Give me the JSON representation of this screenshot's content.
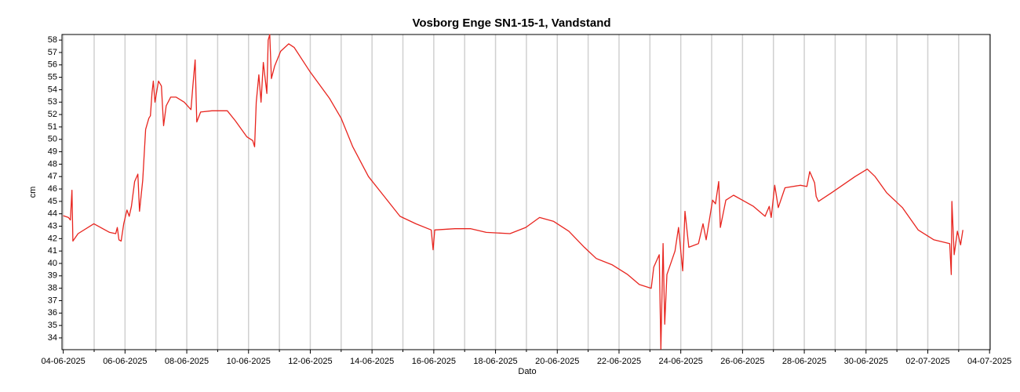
{
  "chart_data": {
    "type": "line",
    "title": "Vosborg Enge SN1-15-1, Vandstand",
    "xlabel": "Dato",
    "ylabel": "cm",
    "x": [
      "2025-06-04T00:00",
      "2025-06-04T04:00",
      "2025-06-04T05:30",
      "2025-06-04T06:45",
      "2025-06-04T07:30",
      "2025-06-04T11:30",
      "2025-06-04T23:45",
      "2025-06-05T12:00",
      "2025-06-05T16:45",
      "2025-06-05T18:00",
      "2025-06-05T19:15",
      "2025-06-05T21:00",
      "2025-06-05T23:00",
      "2025-06-06T01:30",
      "2025-06-06T03:15",
      "2025-06-06T05:00",
      "2025-06-06T07:30",
      "2025-06-06T10:00",
      "2025-06-06T11:15",
      "2025-06-06T13:45",
      "2025-06-06T16:00",
      "2025-06-06T18:30",
      "2025-06-06T19:45",
      "2025-06-06T21:00",
      "2025-06-06T22:00",
      "2025-06-06T23:15",
      "2025-06-07T02:00",
      "2025-06-07T04:15",
      "2025-06-07T06:00",
      "2025-06-07T08:00",
      "2025-06-07T11:30",
      "2025-06-07T15:45",
      "2025-06-07T22:00",
      "2025-06-08T03:15",
      "2025-06-08T04:45",
      "2025-06-08T06:30",
      "2025-06-08T07:45",
      "2025-06-08T10:45",
      "2025-06-08T19:30",
      "2025-06-09T07:30",
      "2025-06-09T13:45",
      "2025-06-09T22:45",
      "2025-06-10T03:15",
      "2025-06-10T04:45",
      "2025-06-10T06:00",
      "2025-06-10T08:00",
      "2025-06-10T09:45",
      "2025-06-10T11:30",
      "2025-06-10T14:15",
      "2025-06-10T15:15",
      "2025-06-10T16:30",
      "2025-06-10T17:45",
      "2025-06-10T20:15",
      "2025-06-11T01:00",
      "2025-06-11T07:15",
      "2025-06-11T11:30",
      "2025-06-11T23:30",
      "2025-06-12T15:00",
      "2025-06-13T00:00",
      "2025-06-13T09:00",
      "2025-06-13T21:15",
      "2025-06-14T09:30",
      "2025-06-14T21:45",
      "2025-06-15T10:00",
      "2025-06-15T22:00",
      "2025-06-15T23:30",
      "2025-06-16T00:45",
      "2025-06-16T16:30",
      "2025-06-17T04:45",
      "2025-06-17T16:45",
      "2025-06-18T11:15",
      "2025-06-18T23:30",
      "2025-06-19T10:15",
      "2025-06-19T21:00",
      "2025-06-20T09:00",
      "2025-06-20T21:00",
      "2025-06-21T06:15",
      "2025-06-21T18:30",
      "2025-06-22T06:45",
      "2025-06-22T15:45",
      "2025-06-23T01:00",
      "2025-06-23T03:00",
      "2025-06-23T07:15",
      "2025-06-23T08:30",
      "2025-06-23T10:15",
      "2025-06-23T11:30",
      "2025-06-23T13:15",
      "2025-06-23T19:30",
      "2025-06-23T22:15",
      "2025-06-24T01:30",
      "2025-06-24T03:15",
      "2025-06-24T06:15",
      "2025-06-24T13:45",
      "2025-06-24T17:15",
      "2025-06-24T19:45",
      "2025-06-25T00:45",
      "2025-06-25T03:00",
      "2025-06-25T05:30",
      "2025-06-25T06:45",
      "2025-06-25T11:00",
      "2025-06-25T17:00",
      "2025-06-26T08:30",
      "2025-06-26T17:30",
      "2025-06-26T20:45",
      "2025-06-26T22:15",
      "2025-06-27T01:00",
      "2025-06-27T03:45",
      "2025-06-27T09:00",
      "2025-06-27T21:00",
      "2025-06-28T02:00",
      "2025-06-28T04:15",
      "2025-06-28T08:00",
      "2025-06-28T09:15",
      "2025-06-28T11:00",
      "2025-06-28T21:15",
      "2025-06-29T15:30",
      "2025-06-30T01:00",
      "2025-06-30T07:00",
      "2025-06-30T16:00",
      "2025-07-01T04:15",
      "2025-07-01T16:30",
      "2025-07-02T04:45",
      "2025-07-02T17:00",
      "2025-07-02T18:15",
      "2025-07-02T18:45",
      "2025-07-02T20:30",
      "2025-07-02T23:00",
      "2025-07-03T01:30",
      "2025-07-03T03:15"
    ],
    "series": [
      {
        "name": "Vandstand",
        "color": "#e8251f",
        "values": [
          43.85,
          43.7,
          43.5,
          45.9,
          41.8,
          42.4,
          43.2,
          42.5,
          42.4,
          42.9,
          41.9,
          41.8,
          43.2,
          44.3,
          43.8,
          44.6,
          46.6,
          47.2,
          44.2,
          46.7,
          50.8,
          51.7,
          51.9,
          53.8,
          54.7,
          53.0,
          54.7,
          54.3,
          51.1,
          52.7,
          53.4,
          53.4,
          53.0,
          52.4,
          54.3,
          56.4,
          51.4,
          52.2,
          52.3,
          52.3,
          51.5,
          50.2,
          49.9,
          49.4,
          53.0,
          55.2,
          53.0,
          56.2,
          53.7,
          58.0,
          58.45,
          54.9,
          55.9,
          57.1,
          57.7,
          57.4,
          55.5,
          53.3,
          51.7,
          49.4,
          47.0,
          45.4,
          43.8,
          43.2,
          42.7,
          41.1,
          42.7,
          42.8,
          42.8,
          42.5,
          42.4,
          42.9,
          43.7,
          43.4,
          42.6,
          41.3,
          40.4,
          39.9,
          39.1,
          38.3,
          38.0,
          39.7,
          40.7,
          33.1,
          41.6,
          35.1,
          39.1,
          41.0,
          42.9,
          39.4,
          44.2,
          41.3,
          41.6,
          43.2,
          41.9,
          45.1,
          44.8,
          46.6,
          42.9,
          45.1,
          45.5,
          44.6,
          43.8,
          44.6,
          43.7,
          46.3,
          44.5,
          46.1,
          46.3,
          46.2,
          47.4,
          46.5,
          45.4,
          45.0,
          45.7,
          47.0,
          47.6,
          47.0,
          45.7,
          44.5,
          42.7,
          41.9,
          41.6,
          39.1,
          45.0,
          40.7,
          42.6,
          41.5,
          42.7
        ]
      }
    ],
    "xlim": [
      "2025-06-03T23:00",
      "2025-07-04T00:30"
    ],
    "xticks": [
      {
        "value": "2025-06-04",
        "label": "04-06-2025"
      },
      {
        "value": "2025-06-06",
        "label": "06-06-2025"
      },
      {
        "value": "2025-06-08",
        "label": "08-06-2025"
      },
      {
        "value": "2025-06-10",
        "label": "10-06-2025"
      },
      {
        "value": "2025-06-12",
        "label": "12-06-2025"
      },
      {
        "value": "2025-06-14",
        "label": "14-06-2025"
      },
      {
        "value": "2025-06-16",
        "label": "16-06-2025"
      },
      {
        "value": "2025-06-18",
        "label": "18-06-2025"
      },
      {
        "value": "2025-06-20",
        "label": "20-06-2025"
      },
      {
        "value": "2025-06-22",
        "label": "22-06-2025"
      },
      {
        "value": "2025-06-24",
        "label": "24-06-2025"
      },
      {
        "value": "2025-06-26",
        "label": "26-06-2025"
      },
      {
        "value": "2025-06-28",
        "label": "28-06-2025"
      },
      {
        "value": "2025-06-30",
        "label": "30-06-2025"
      },
      {
        "value": "2025-07-02",
        "label": "02-07-2025"
      },
      {
        "value": "2025-07-04",
        "label": "04-07-2025"
      }
    ],
    "xminor_ticks": [
      "2025-06-05",
      "2025-06-07",
      "2025-06-09",
      "2025-06-11",
      "2025-06-13",
      "2025-06-15",
      "2025-06-17",
      "2025-06-19",
      "2025-06-21",
      "2025-06-23",
      "2025-06-25",
      "2025-06-27",
      "2025-06-29",
      "2025-07-01",
      "2025-07-03"
    ],
    "ylim": [
      33.05,
      58.45
    ],
    "yticks": [
      34,
      35,
      36,
      37,
      38,
      39,
      40,
      41,
      42,
      43,
      44,
      45,
      46,
      47,
      48,
      49,
      50,
      51,
      52,
      53,
      54,
      55,
      56,
      57,
      58
    ],
    "grid": "x"
  }
}
